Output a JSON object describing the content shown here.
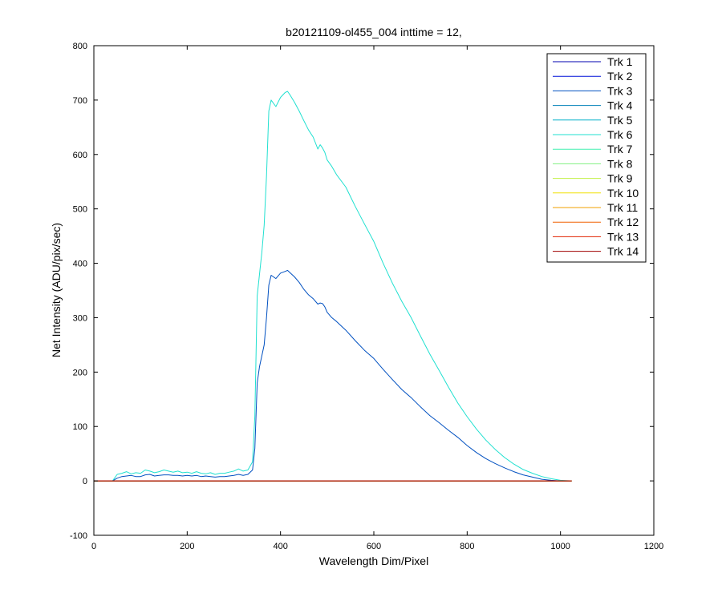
{
  "chart_data": {
    "type": "line",
    "title": "b20121109-ol455_004 inttime = 12,",
    "xlabel": "Wavelength Dim/Pixel",
    "ylabel": "Net Intensity (ADU/pix/sec)",
    "xlim": [
      0,
      1200
    ],
    "ylim": [
      -100,
      800
    ],
    "xticks": [
      0,
      200,
      400,
      600,
      800,
      1000,
      1200
    ],
    "yticks": [
      -100,
      0,
      100,
      200,
      300,
      400,
      500,
      600,
      700,
      800
    ],
    "grid": false,
    "legend_position": "top-right",
    "series": [
      {
        "name": "Trk 1",
        "color": "#0000b0",
        "x": [
          0,
          1024
        ],
        "y": [
          0,
          0
        ]
      },
      {
        "name": "Trk 2",
        "color": "#0010d8",
        "x": [
          0,
          1024
        ],
        "y": [
          0,
          0
        ]
      },
      {
        "name": "Trk 3",
        "color": "#0050c0",
        "x": [
          0,
          40,
          50,
          60,
          70,
          80,
          90,
          100,
          110,
          120,
          130,
          140,
          150,
          160,
          170,
          180,
          190,
          200,
          210,
          220,
          230,
          240,
          250,
          260,
          270,
          280,
          290,
          300,
          310,
          320,
          330,
          340,
          345,
          350,
          355,
          360,
          365,
          370,
          375,
          380,
          390,
          400,
          410,
          415,
          420,
          430,
          440,
          450,
          460,
          470,
          480,
          485,
          490,
          495,
          500,
          510,
          520,
          540,
          560,
          580,
          600,
          620,
          640,
          660,
          680,
          700,
          720,
          740,
          760,
          780,
          800,
          820,
          840,
          860,
          880,
          900,
          920,
          940,
          960,
          980,
          1000,
          1024
        ],
        "y": [
          0,
          0,
          5,
          8,
          9,
          10,
          8,
          8,
          11,
          12,
          9,
          10,
          11,
          11,
          10,
          10,
          9,
          10,
          9,
          10,
          8,
          9,
          8,
          7,
          8,
          8,
          9,
          10,
          12,
          10,
          12,
          20,
          60,
          180,
          210,
          230,
          250,
          300,
          360,
          378,
          372,
          382,
          385,
          387,
          383,
          375,
          365,
          352,
          342,
          335,
          325,
          327,
          326,
          320,
          310,
          300,
          293,
          277,
          258,
          240,
          225,
          205,
          186,
          168,
          153,
          136,
          120,
          107,
          93,
          80,
          65,
          52,
          41,
          32,
          24,
          17,
          11,
          7,
          3,
          1,
          0,
          0
        ]
      },
      {
        "name": "Trk 4",
        "color": "#0080b8",
        "x": [
          0,
          1024
        ],
        "y": [
          0,
          0
        ]
      },
      {
        "name": "Trk 5",
        "color": "#00b0c8",
        "x": [
          0,
          1024
        ],
        "y": [
          0,
          0
        ]
      },
      {
        "name": "Trk 6",
        "color": "#20e0d0",
        "x": [
          0,
          40,
          50,
          60,
          70,
          80,
          90,
          100,
          110,
          120,
          130,
          140,
          150,
          160,
          170,
          180,
          190,
          200,
          210,
          220,
          230,
          240,
          250,
          260,
          270,
          280,
          290,
          300,
          310,
          320,
          330,
          340,
          345,
          350,
          355,
          360,
          365,
          370,
          375,
          380,
          390,
          400,
          410,
          415,
          420,
          430,
          440,
          450,
          460,
          470,
          480,
          485,
          490,
          495,
          500,
          510,
          520,
          540,
          560,
          580,
          600,
          620,
          640,
          660,
          680,
          700,
          720,
          740,
          760,
          780,
          800,
          820,
          840,
          860,
          880,
          900,
          920,
          940,
          960,
          980,
          1000,
          1024
        ],
        "y": [
          0,
          0,
          12,
          14,
          17,
          13,
          15,
          14,
          20,
          18,
          15,
          17,
          20,
          18,
          16,
          18,
          15,
          16,
          14,
          17,
          14,
          13,
          15,
          12,
          14,
          14,
          16,
          18,
          22,
          18,
          20,
          35,
          120,
          340,
          380,
          420,
          470,
          560,
          680,
          700,
          688,
          705,
          714,
          716,
          710,
          696,
          680,
          662,
          645,
          632,
          610,
          618,
          612,
          604,
          590,
          578,
          563,
          540,
          505,
          472,
          440,
          400,
          363,
          330,
          300,
          266,
          233,
          203,
          172,
          143,
          118,
          95,
          75,
          58,
          43,
          31,
          21,
          14,
          8,
          4,
          1,
          0
        ]
      },
      {
        "name": "Trk 7",
        "color": "#40f0b0",
        "x": [
          0,
          1024
        ],
        "y": [
          0,
          0
        ]
      },
      {
        "name": "Trk 8",
        "color": "#80f080",
        "x": [
          0,
          1024
        ],
        "y": [
          0,
          0
        ]
      },
      {
        "name": "Trk 9",
        "color": "#c0f040",
        "x": [
          0,
          1024
        ],
        "y": [
          0,
          0
        ]
      },
      {
        "name": "Trk 10",
        "color": "#f0e000",
        "x": [
          0,
          1024
        ],
        "y": [
          0,
          0
        ]
      },
      {
        "name": "Trk 11",
        "color": "#f0a000",
        "x": [
          0,
          1024
        ],
        "y": [
          0,
          0
        ]
      },
      {
        "name": "Trk 12",
        "color": "#f06000",
        "x": [
          0,
          1024
        ],
        "y": [
          0,
          0
        ]
      },
      {
        "name": "Trk 13",
        "color": "#e02000",
        "x": [
          0,
          1024
        ],
        "y": [
          0,
          0
        ]
      },
      {
        "name": "Trk 14",
        "color": "#a00000",
        "x": [
          0,
          1024
        ],
        "y": [
          0,
          0
        ]
      }
    ]
  }
}
